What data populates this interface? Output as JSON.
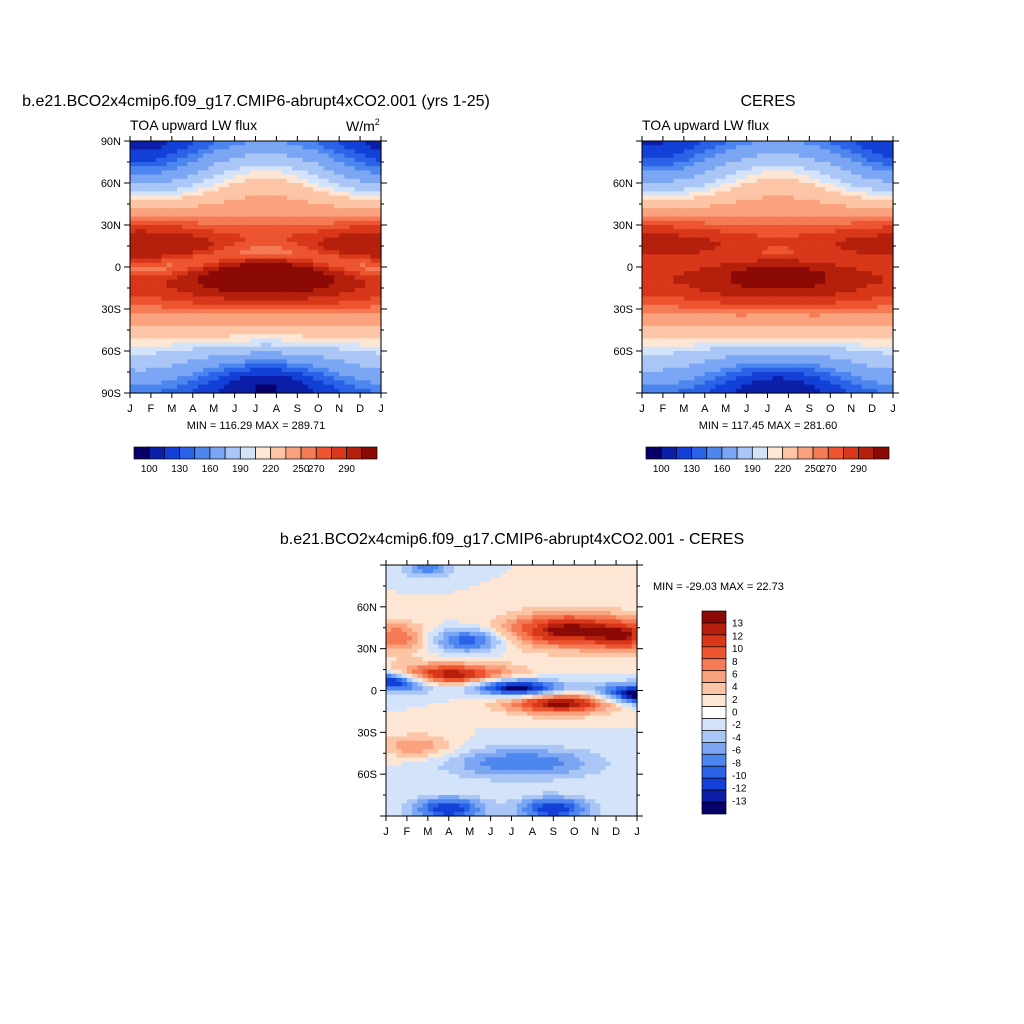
{
  "page": {
    "top_left_title": "b.e21.BCO2x4cmip6.f09_g17.CMIP6-abrupt4xCO2.001 (yrs 1-25)",
    "top_right_title": "CERES",
    "bottom_title": "b.e21.BCO2x4cmip6.f09_g17.CMIP6-abrupt4xCO2.001 - CERES"
  },
  "chart_data": [
    {
      "type": "heatmap",
      "panel": "model",
      "subtitle": "TOA upward LW flux",
      "units": "W/m2",
      "x": [
        "J",
        "F",
        "M",
        "A",
        "M",
        "J",
        "J",
        "A",
        "S",
        "O",
        "N",
        "D",
        "J"
      ],
      "y_ticks": [
        "90N",
        "60N",
        "30N",
        "0",
        "30S",
        "60S",
        "90S"
      ],
      "ylim": [
        -90,
        90
      ],
      "stats": "MIN = 116.29 MAX = 289.71",
      "min": 116.29,
      "max": 289.71,
      "colorbar_labels": [
        "100",
        "130",
        "160",
        "190",
        "220",
        "250",
        "270",
        "290"
      ],
      "colorbar_orientation": "horizontal"
    },
    {
      "type": "heatmap",
      "panel": "obs",
      "subtitle": "TOA upward LW flux",
      "x": [
        "J",
        "F",
        "M",
        "A",
        "M",
        "J",
        "J",
        "A",
        "S",
        "O",
        "N",
        "D",
        "J"
      ],
      "y_ticks": [
        "60N",
        "30N",
        "0",
        "30S",
        "60S"
      ],
      "ylim": [
        -90,
        90
      ],
      "stats": "MIN = 117.45 MAX = 281.60",
      "min": 117.45,
      "max": 281.6,
      "colorbar_labels": [
        "100",
        "130",
        "160",
        "190",
        "220",
        "250",
        "270",
        "290"
      ],
      "colorbar_orientation": "horizontal"
    },
    {
      "type": "heatmap",
      "panel": "difference",
      "x": [
        "J",
        "F",
        "M",
        "A",
        "M",
        "J",
        "J",
        "A",
        "S",
        "O",
        "N",
        "D",
        "J"
      ],
      "y_ticks": [
        "60N",
        "30N",
        "0",
        "30S",
        "60S"
      ],
      "ylim": [
        -90,
        90
      ],
      "stats": "MIN = -29.03 MAX =  22.73",
      "min": -29.03,
      "max": 22.73,
      "colorbar_labels": [
        "13",
        "12",
        "10",
        "8",
        "6",
        "4",
        "2",
        "0",
        "-2",
        "-4",
        "-6",
        "-8",
        "-10",
        "-12",
        "-13"
      ],
      "colorbar_orientation": "vertical"
    }
  ],
  "colors": {
    "abs_scale": [
      "#08006a",
      "#0b1fa8",
      "#1340d6",
      "#2a63e8",
      "#4d86ef",
      "#7aa6f3",
      "#a9c6f6",
      "#d3e3f9",
      "#fde6d4",
      "#fcc6a6",
      "#f9a27d",
      "#f47b55",
      "#ec5530",
      "#d8371a",
      "#b5200d",
      "#8b0a05"
    ],
    "diff_scale": [
      "#08006a",
      "#0b1fa8",
      "#1340d6",
      "#2a63e8",
      "#4d86ef",
      "#7aa6f3",
      "#a9c6f6",
      "#d3e3f9",
      "#ffffff",
      "#fde6d4",
      "#fcc6a6",
      "#f9a27d",
      "#f47b55",
      "#ec5530",
      "#d8371a",
      "#b5200d",
      "#8b0a05"
    ]
  }
}
